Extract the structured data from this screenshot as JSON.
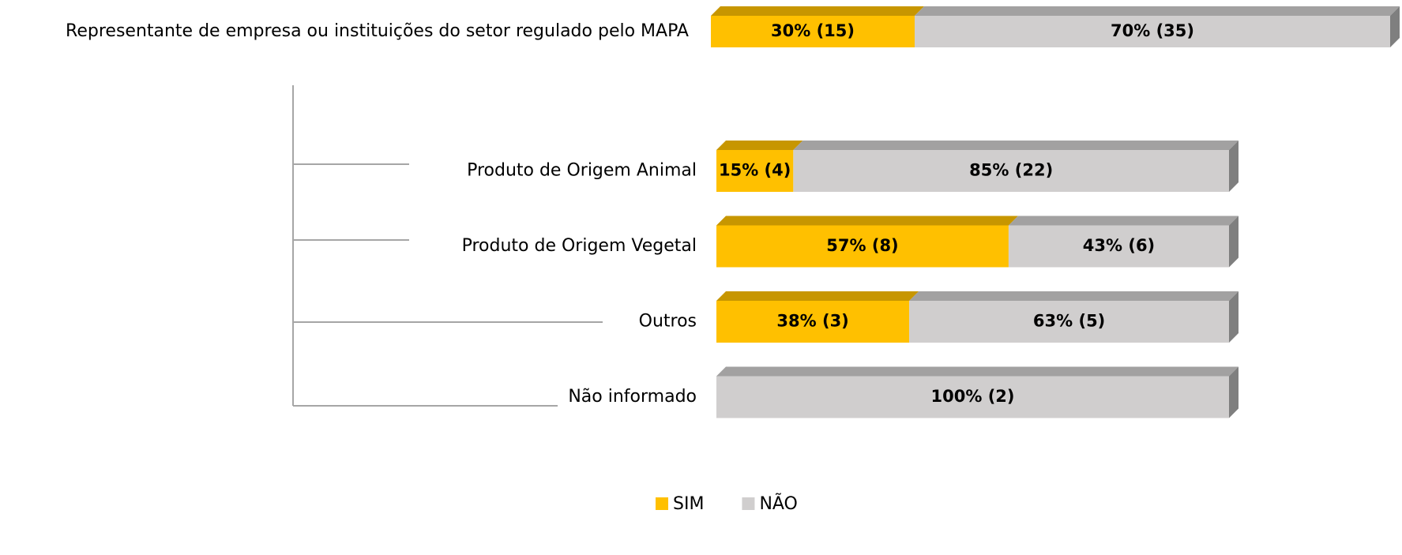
{
  "chart_data": {
    "type": "bar",
    "categories": [
      "Representante de empresa ou instituições do setor regulado pelo MAPA",
      "Produto de Origem Animal",
      "Produto de Origem Vegetal",
      "Outros",
      "Não informado"
    ],
    "series": [
      {
        "name": "SIM",
        "color": "#FFC000",
        "values": [
          30,
          15,
          57,
          38,
          null
        ],
        "value_labels": [
          "30% (15)",
          "15% (4)",
          "57% (8)",
          "38% (3)",
          null
        ]
      },
      {
        "name": "NÃO",
        "color": "#D0CECE",
        "values": [
          70,
          85,
          43,
          63,
          100
        ],
        "value_labels": [
          "70% (35)",
          "85% (22)",
          "43% (6)",
          "63% (5)",
          "100% (2)"
        ]
      }
    ],
    "legend": "bottom"
  }
}
